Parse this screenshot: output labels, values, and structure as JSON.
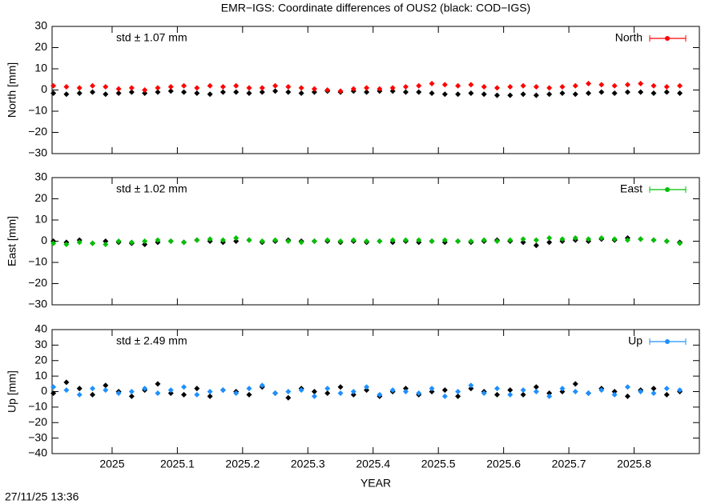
{
  "title": "EMR−IGS: Coordinate differences of OUS2 (black: COD−IGS)",
  "timestamp": "27/11/25 13:36",
  "chart_data": [
    {
      "type": "scatter",
      "ylabel": "North [mm]",
      "annotation": "std ± 1.07 mm",
      "legend": "upper right",
      "xlim": [
        2024.908,
        2025.9
      ],
      "xticks": [
        2025,
        2025.1,
        2025.2,
        2025.3,
        2025.4,
        2025.5,
        2025.6,
        2025.7,
        2025.8
      ],
      "ylim": [
        -30,
        30
      ],
      "yticks": [
        {
          "value": -30,
          "label": "−30"
        },
        {
          "value": -20,
          "label": "−20"
        },
        {
          "value": -10,
          "label": "−10"
        },
        0,
        10,
        20,
        30
      ],
      "x": [
        2024.91,
        2024.93,
        2024.95,
        2024.97,
        2024.99,
        2025.01,
        2025.03,
        2025.05,
        2025.07,
        2025.09,
        2025.11,
        2025.13,
        2025.15,
        2025.17,
        2025.19,
        2025.21,
        2025.23,
        2025.25,
        2025.27,
        2025.29,
        2025.31,
        2025.33,
        2025.35,
        2025.37,
        2025.39,
        2025.41,
        2025.43,
        2025.45,
        2025.47,
        2025.49,
        2025.51,
        2025.53,
        2025.55,
        2025.57,
        2025.59,
        2025.61,
        2025.63,
        2025.65,
        2025.67,
        2025.69,
        2025.71,
        2025.73,
        2025.75,
        2025.77,
        2025.79,
        2025.81,
        2025.83,
        2025.85,
        2025.87
      ],
      "series": [
        {
          "color": "#000000",
          "values": [
            -1.5,
            -2,
            -1.5,
            -1,
            -2,
            -1.5,
            -1,
            -1.5,
            -1,
            -0.5,
            -1,
            -1.5,
            -2,
            -1,
            -1,
            -1.5,
            -1,
            -0.5,
            -1,
            -1.5,
            -1,
            -0.5,
            -1,
            -0.5,
            -1,
            -0.5,
            -0.5,
            -1,
            -1,
            -1.5,
            -2,
            -2,
            -1.5,
            -2,
            -2.5,
            -2.5,
            -2,
            -2.5,
            -2,
            -1.5,
            -2,
            -1.5,
            -1,
            -1.5,
            -1,
            -1,
            -1.5,
            -1,
            -1.5
          ]
        },
        {
          "name": "North",
          "color": "#ff0000",
          "values": [
            2,
            1.5,
            1,
            2,
            1.5,
            0.5,
            1,
            0,
            1,
            1.5,
            2,
            1,
            2,
            1.5,
            2,
            1,
            1,
            2,
            1.5,
            1,
            0.5,
            0,
            -0.5,
            0.5,
            1,
            0.5,
            1,
            1.5,
            2,
            3,
            2.5,
            2,
            2.5,
            1.5,
            1,
            1.5,
            2,
            1.5,
            1,
            1.5,
            2,
            3,
            2.5,
            2,
            2.5,
            3,
            2,
            1.5,
            2
          ]
        }
      ]
    },
    {
      "type": "scatter",
      "ylabel": "East [mm]",
      "annotation": "std ± 1.02 mm",
      "legend": "upper right",
      "xlim": [
        2024.908,
        2025.9
      ],
      "xticks": [
        2025,
        2025.1,
        2025.2,
        2025.3,
        2025.4,
        2025.5,
        2025.6,
        2025.7,
        2025.8
      ],
      "ylim": [
        -30,
        30
      ],
      "yticks": [
        {
          "value": -30,
          "label": "−30"
        },
        {
          "value": -20,
          "label": "−20"
        },
        {
          "value": -10,
          "label": "−10"
        },
        0,
        10,
        20,
        30
      ],
      "x": [
        2024.91,
        2024.93,
        2024.95,
        2024.97,
        2024.99,
        2025.01,
        2025.03,
        2025.05,
        2025.07,
        2025.09,
        2025.11,
        2025.13,
        2025.15,
        2025.17,
        2025.19,
        2025.21,
        2025.23,
        2025.25,
        2025.27,
        2025.29,
        2025.31,
        2025.33,
        2025.35,
        2025.37,
        2025.39,
        2025.41,
        2025.43,
        2025.45,
        2025.47,
        2025.49,
        2025.51,
        2025.53,
        2025.55,
        2025.57,
        2025.59,
        2025.61,
        2025.63,
        2025.65,
        2025.67,
        2025.69,
        2025.71,
        2025.73,
        2025.75,
        2025.77,
        2025.79,
        2025.81,
        2025.83,
        2025.85,
        2025.87
      ],
      "series": [
        {
          "color": "#000000",
          "values": [
            0,
            -0.5,
            0.5,
            -1,
            0,
            -0.5,
            -1,
            -1.5,
            -0.5,
            0,
            -0.5,
            0.5,
            0,
            -0.5,
            0,
            0.5,
            -0.5,
            0,
            0.5,
            0,
            0,
            0,
            -0.5,
            0,
            -0.5,
            0,
            -0.5,
            0,
            -0.5,
            0,
            -0.5,
            0,
            -0.5,
            0,
            0.5,
            0,
            -0.5,
            -2,
            -0.5,
            0,
            0.5,
            0,
            1,
            0.5,
            1.5,
            1,
            0.5,
            0,
            -0.5
          ]
        },
        {
          "name": "East",
          "color": "#00c000",
          "values": [
            -1,
            -1.5,
            -0.5,
            -1,
            -1.5,
            0,
            -0.5,
            0,
            0.5,
            0,
            -0.5,
            0.5,
            1,
            0.5,
            1.5,
            0.5,
            0,
            0.5,
            0,
            -0.5,
            0,
            0.5,
            0,
            0.5,
            0,
            0,
            0.5,
            0.5,
            0.5,
            0,
            0.5,
            0,
            0,
            0.5,
            0,
            0.5,
            1,
            0.5,
            1.5,
            1,
            1.5,
            1,
            1.5,
            1,
            0.5,
            1,
            0.5,
            0,
            -1
          ]
        }
      ]
    },
    {
      "type": "scatter",
      "ylabel": "Up [mm]",
      "xlabel": "YEAR",
      "annotation": "std ± 2.49 mm",
      "legend": "upper right",
      "xlim": [
        2024.908,
        2025.9
      ],
      "xticks": [
        2025,
        2025.1,
        2025.2,
        2025.3,
        2025.4,
        2025.5,
        2025.6,
        2025.7,
        2025.8
      ],
      "ylim": [
        -40,
        40
      ],
      "yticks": [
        {
          "value": -40,
          "label": "−40"
        },
        {
          "value": -30,
          "label": "−30"
        },
        {
          "value": -20,
          "label": "−20"
        },
        {
          "value": -10,
          "label": "−10"
        },
        0,
        10,
        20,
        30,
        40
      ],
      "x": [
        2024.91,
        2024.93,
        2024.95,
        2024.97,
        2024.99,
        2025.01,
        2025.03,
        2025.05,
        2025.07,
        2025.09,
        2025.11,
        2025.13,
        2025.15,
        2025.17,
        2025.19,
        2025.21,
        2025.23,
        2025.25,
        2025.27,
        2025.29,
        2025.31,
        2025.33,
        2025.35,
        2025.37,
        2025.39,
        2025.41,
        2025.43,
        2025.45,
        2025.47,
        2025.49,
        2025.51,
        2025.53,
        2025.55,
        2025.57,
        2025.59,
        2025.61,
        2025.63,
        2025.65,
        2025.67,
        2025.69,
        2025.71,
        2025.73,
        2025.75,
        2025.77,
        2025.79,
        2025.81,
        2025.83,
        2025.85,
        2025.87
      ],
      "series": [
        {
          "color": "#000000",
          "values": [
            -1,
            6,
            2,
            -2,
            4,
            0,
            -3,
            1,
            5,
            -1,
            -2,
            2,
            -3,
            1,
            0,
            -2,
            3,
            -1,
            -4,
            2,
            0,
            -1,
            3,
            -2,
            1,
            -3,
            0,
            2,
            -2,
            0,
            1,
            -3,
            2,
            0,
            -2,
            1,
            -2,
            3,
            -1,
            0,
            5,
            -1,
            2,
            0,
            -3,
            1,
            2,
            -2,
            0
          ]
        },
        {
          "name": "Up",
          "color": "#1e90ff",
          "values": [
            3,
            1,
            -2,
            2,
            1,
            -1,
            0,
            2,
            -1,
            1,
            3,
            -2,
            0,
            1,
            -1,
            2,
            4,
            -1,
            0,
            1,
            -3,
            2,
            -1,
            0,
            3,
            -2,
            1,
            0,
            -1,
            2,
            -3,
            0,
            4,
            -1,
            2,
            -2,
            1,
            0,
            -3,
            2,
            0,
            -1,
            1,
            -2,
            3,
            0,
            -1,
            2,
            1
          ]
        }
      ]
    }
  ]
}
